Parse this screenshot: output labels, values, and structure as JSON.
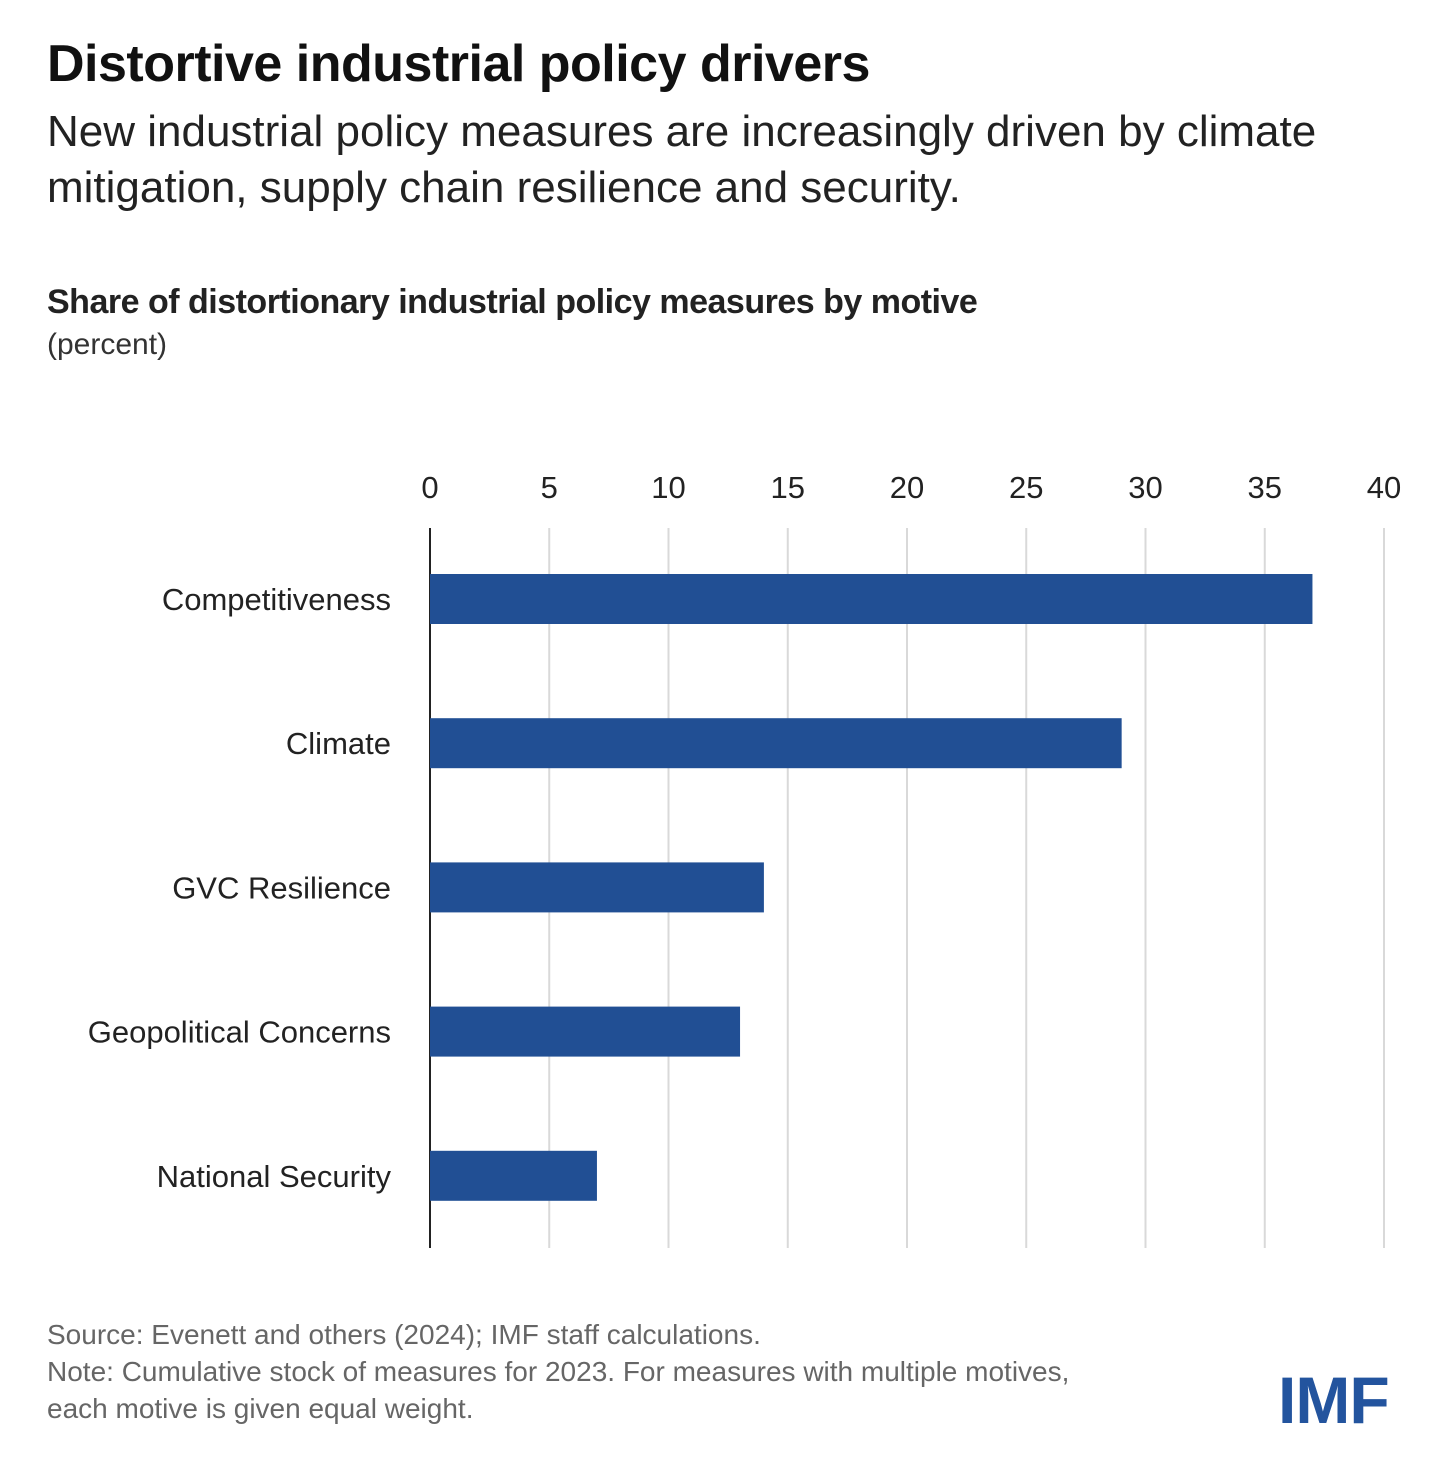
{
  "header": {
    "title": "Distortive industrial policy drivers",
    "subtitle": "New industrial policy measures are increasingly driven by climate mitigation, supply chain resilience and security."
  },
  "chart_data": {
    "type": "bar",
    "orientation": "horizontal",
    "title": "Share of distortionary industrial policy measures by motive",
    "unit": "(percent)",
    "categories": [
      "Competitiveness",
      "Climate",
      "GVC Resilience",
      "Geopolitical Concerns",
      "National Security"
    ],
    "values": [
      37,
      29,
      14,
      13,
      7
    ],
    "xlim": [
      0,
      40
    ],
    "xticks": [
      0,
      5,
      10,
      15,
      20,
      25,
      30,
      35,
      40
    ],
    "xaxis_position": "top",
    "grid": true,
    "bar_color": "#214f94"
  },
  "footer": {
    "source": "Source: Evenett and others (2024); IMF staff calculations.",
    "note": "Note: Cumulative stock of measures for 2023. For measures with multiple motives, each motive is given equal weight.",
    "logo": "IMF"
  }
}
